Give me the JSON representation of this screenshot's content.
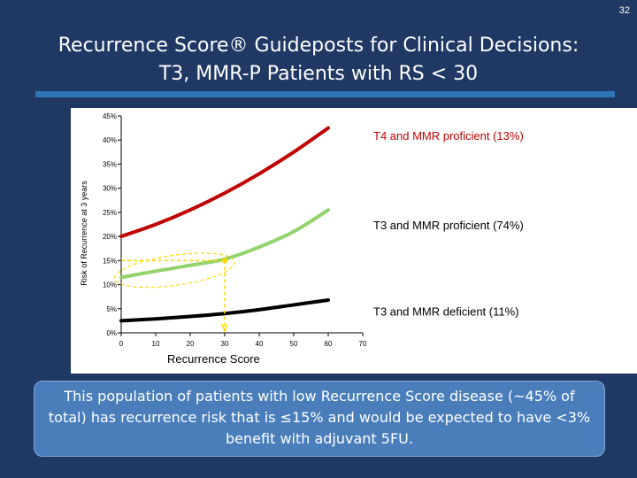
{
  "slide": {
    "number": "32",
    "title_line1": "Recurrence Score® Guideposts for Clinical Decisions:",
    "title_line2": "T3, MMR-P Patients with RS < 30",
    "summary": "This population of patients with low Recurrence Score disease (~45% of total) has recurrence risk that is ≤15% and would be expected to have <3% benefit with adjuvant 5FU."
  },
  "chart_data": {
    "type": "line",
    "xlabel": "Recurrence Score",
    "ylabel": "Risk of Recurrence at 3 years",
    "xlim": [
      0,
      70
    ],
    "ylim": [
      0,
      45
    ],
    "x_ticks": [
      0,
      10,
      20,
      30,
      40,
      50,
      60,
      70
    ],
    "x_tick_labels": [
      "0",
      "10",
      "20",
      "30",
      "40",
      "50",
      "60",
      "70"
    ],
    "y_ticks": [
      0,
      5,
      10,
      15,
      20,
      25,
      30,
      35,
      40,
      45
    ],
    "y_tick_labels": [
      "0%",
      "5%",
      "10%",
      "15%",
      "20%",
      "25%",
      "30%",
      "35%",
      "40%",
      "45%"
    ],
    "grid": false,
    "series": [
      {
        "name": "T4 and MMR proficient (13%)",
        "color": "#c00000",
        "x": [
          0,
          10,
          20,
          30,
          40,
          50,
          60
        ],
        "y": [
          20.0,
          22.5,
          25.5,
          29.0,
          33.0,
          37.5,
          42.5
        ]
      },
      {
        "name": "T3 and MMR proficient (74%)",
        "color": "#92d36e",
        "x": [
          0,
          10,
          20,
          30,
          40,
          50,
          60
        ],
        "y": [
          11.5,
          12.8,
          14.0,
          15.3,
          17.8,
          21.0,
          25.5
        ]
      },
      {
        "name": "T3 and MMR deficient (11%)",
        "color": "#000000",
        "x": [
          0,
          10,
          20,
          30,
          40,
          50,
          60
        ],
        "y": [
          2.5,
          2.9,
          3.4,
          4.0,
          4.8,
          5.8,
          6.8
        ]
      }
    ],
    "annotation": {
      "guide_x": 30,
      "guide_y": 15,
      "highlight_x_range": [
        0,
        30
      ],
      "color": "#ffd700"
    }
  }
}
